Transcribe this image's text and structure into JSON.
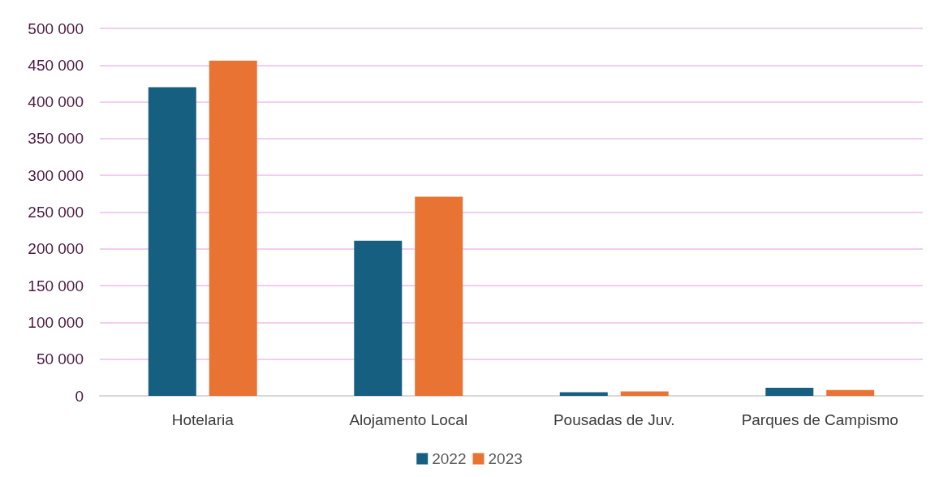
{
  "chart_data": {
    "type": "bar",
    "categories": [
      "Hotelaria",
      "Alojamento Local",
      "Pousadas de Juv.",
      "Parques de Campismo"
    ],
    "series": [
      {
        "name": "2022",
        "color": "#175f80",
        "values": [
          420000,
          211000,
          5000,
          11000
        ]
      },
      {
        "name": "2023",
        "color": "#e97333",
        "values": [
          456000,
          271000,
          6000,
          8000
        ]
      }
    ],
    "ylim": [
      0,
      500000
    ],
    "yticks": [
      {
        "value": 0,
        "label": "0"
      },
      {
        "value": 50000,
        "label": "50 000"
      },
      {
        "value": 100000,
        "label": "100 000"
      },
      {
        "value": 150000,
        "label": "150 000"
      },
      {
        "value": 200000,
        "label": "200 000"
      },
      {
        "value": 250000,
        "label": "250 000"
      },
      {
        "value": 300000,
        "label": "300 000"
      },
      {
        "value": 350000,
        "label": "350 000"
      },
      {
        "value": 400000,
        "label": "400 000"
      },
      {
        "value": 450000,
        "label": "450 000"
      },
      {
        "value": 500000,
        "label": "500 000"
      }
    ],
    "grid": true,
    "legend": "bottom"
  }
}
